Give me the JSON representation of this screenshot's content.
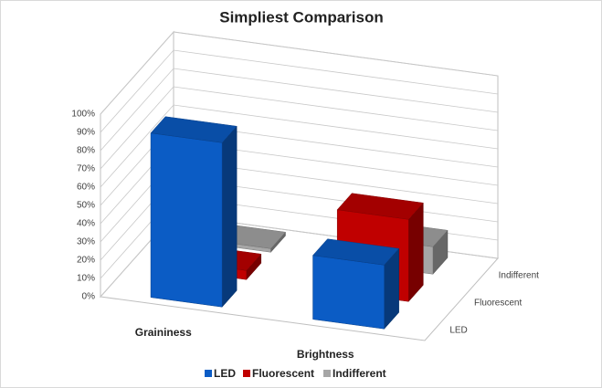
{
  "chart_data": {
    "type": "bar3d",
    "title": "Simpliest Comparison",
    "categories": [
      "Graininess",
      "Brightness"
    ],
    "series": [
      {
        "name": "LED",
        "color": "#0b5cc5",
        "values": [
          90,
          35
        ]
      },
      {
        "name": "Fluorescent",
        "color": "#c00000",
        "values": [
          5,
          45
        ]
      },
      {
        "name": "Indifferent",
        "color": "#a6a6a6",
        "values": [
          2,
          15
        ]
      }
    ],
    "ylim": [
      0,
      100
    ],
    "yticks": [
      {
        "value": 0,
        "label": "0%"
      },
      {
        "value": 10,
        "label": "10%"
      },
      {
        "value": 20,
        "label": "20%"
      },
      {
        "value": 30,
        "label": "30%"
      },
      {
        "value": 40,
        "label": "40%"
      },
      {
        "value": 50,
        "label": "50%"
      },
      {
        "value": 60,
        "label": "60%"
      },
      {
        "value": 70,
        "label": "70%"
      },
      {
        "value": 80,
        "label": "80%"
      },
      {
        "value": 90,
        "label": "90%"
      },
      {
        "value": 100,
        "label": "100%"
      }
    ],
    "grid": true,
    "legend": "bottom"
  }
}
